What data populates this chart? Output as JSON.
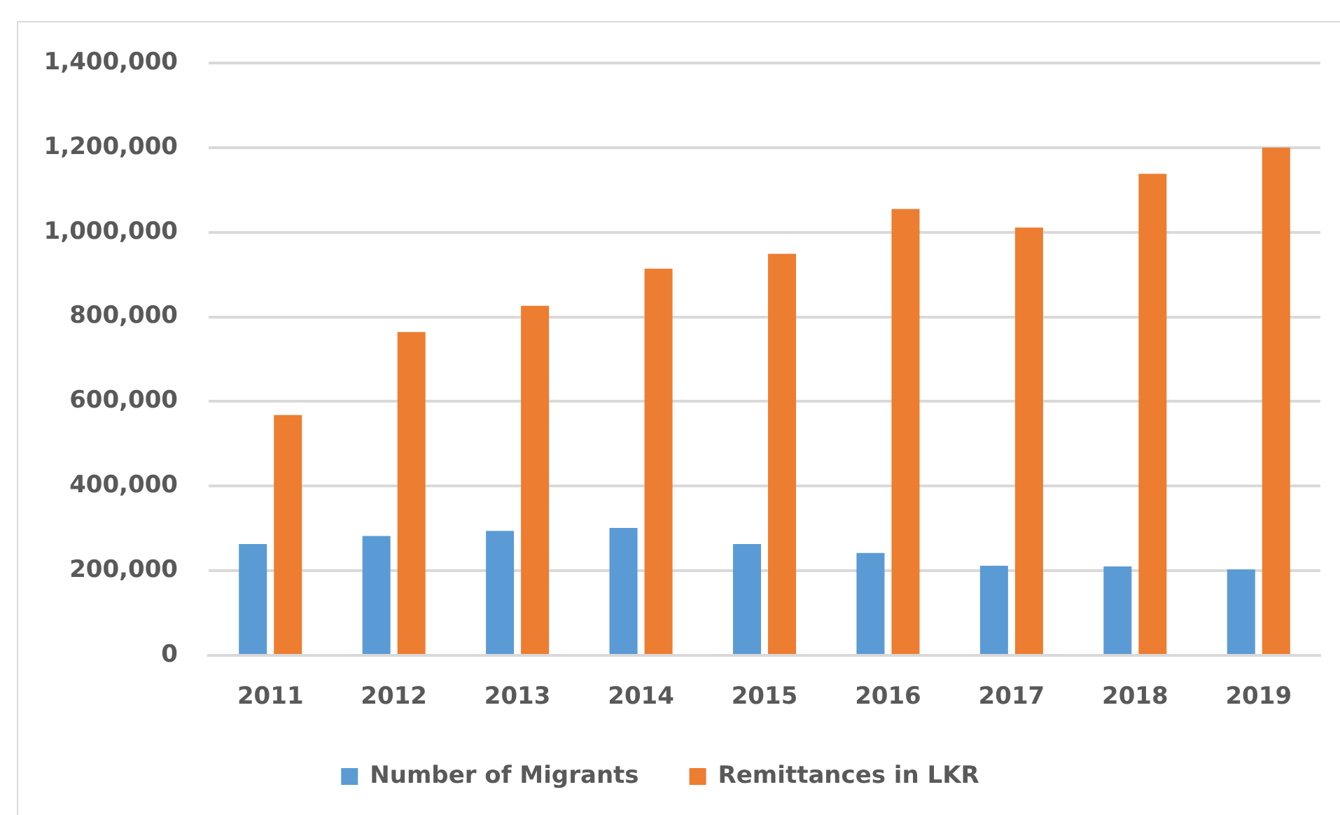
{
  "chart_data": {
    "type": "bar",
    "categories": [
      "2011",
      "2012",
      "2013",
      "2014",
      "2015",
      "2016",
      "2017",
      "2018",
      "2019"
    ],
    "series": [
      {
        "name": "Number of Migrants",
        "color": "#5b9bd5",
        "values": [
          263000,
          282000,
          294000,
          301000,
          263000,
          242000,
          212000,
          210000,
          203000
        ]
      },
      {
        "name": "Remittances in LKR",
        "color": "#ed7d31",
        "values": [
          568000,
          764000,
          826000,
          914000,
          949000,
          1055000,
          1011000,
          1138000,
          1200000
        ]
      }
    ],
    "ylim": [
      0,
      1400000
    ],
    "yticks": [
      0,
      {
        "value": 200000,
        "label": "200,000"
      },
      {
        "value": 400000,
        "label": "400,000"
      },
      {
        "value": 600000,
        "label": "600,000"
      },
      {
        "value": 800000,
        "label": "800,000"
      },
      {
        "value": 1000000,
        "label": "1,000,000"
      },
      {
        "value": 1200000,
        "label": "1,200,000"
      },
      {
        "value": 1400000,
        "label": "1,400,000"
      }
    ],
    "grid": "y",
    "legend": "bottom"
  }
}
